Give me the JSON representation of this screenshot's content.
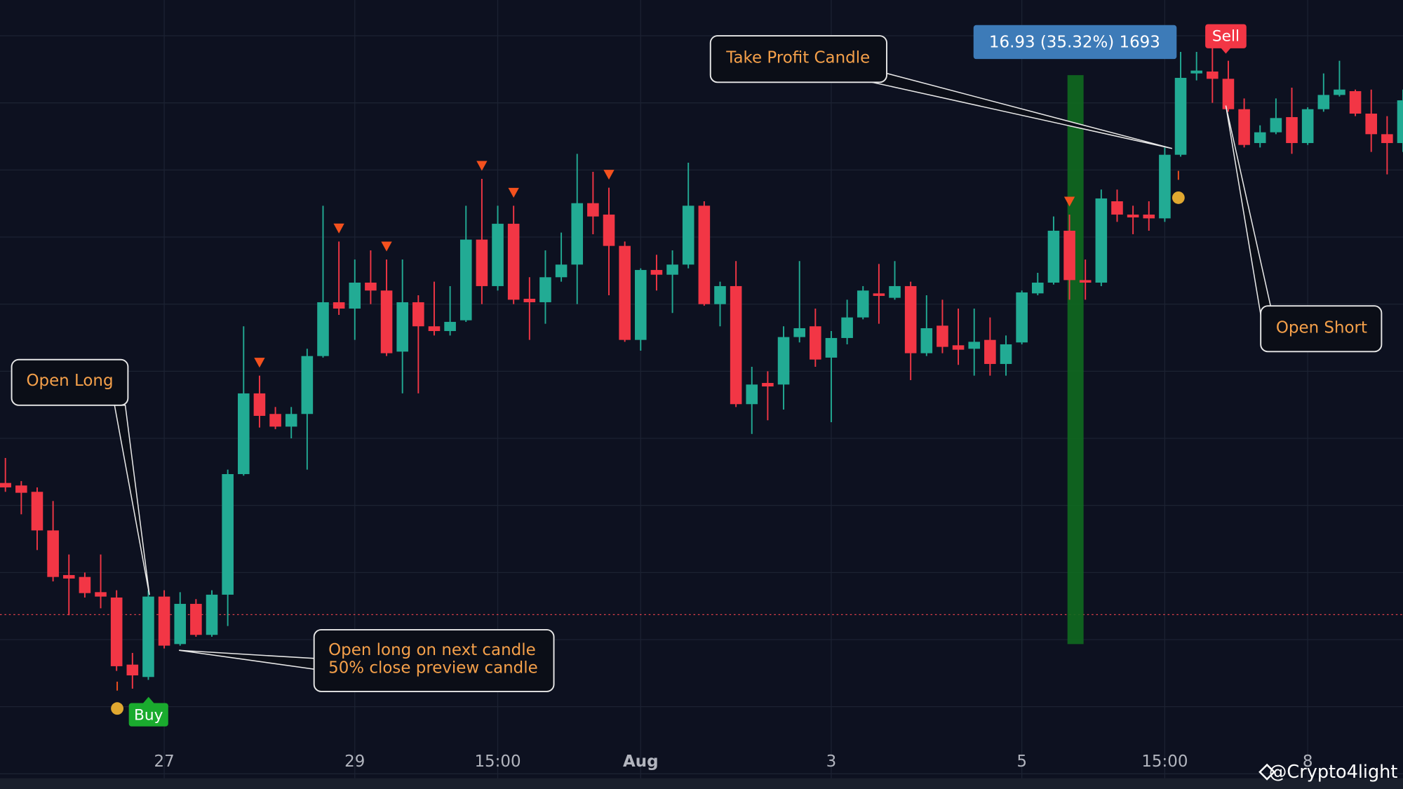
{
  "chart_data": {
    "type": "candlestick",
    "up_color": "#22ab94",
    "down_color": "#f23645",
    "xlim": [
      -0.34,
      88.0
    ],
    "ylim": [
      43.89,
      67.35
    ],
    "xticks": [
      {
        "value": 10,
        "label": "27"
      },
      {
        "value": 22,
        "label": "29"
      },
      {
        "value": 31,
        "label": "15:00"
      },
      {
        "value": 40,
        "label": "Aug"
      },
      {
        "value": 52,
        "label": "3"
      },
      {
        "value": 64,
        "label": "5"
      },
      {
        "value": 73,
        "label": "15:00"
      },
      {
        "value": 82,
        "label": "8"
      }
    ],
    "grid": true,
    "open": [
      52.09,
      52.01,
      51.81,
      50.59,
      49.18,
      49.12,
      48.64,
      48.47,
      46.35,
      45.96,
      48.5,
      47.0,
      48.27,
      47.29,
      48.56,
      52.37,
      54.92,
      54.27,
      53.87,
      54.27,
      56.1,
      57.8,
      57.6,
      58.42,
      58.17,
      56.24,
      57.8,
      57.04,
      56.89,
      57.23,
      59.78,
      58.31,
      60.28,
      57.91,
      57.8,
      58.59,
      58.99,
      60.93,
      60.57,
      59.58,
      56.61,
      58.82,
      58.67,
      58.99,
      60.85,
      57.74,
      58.31,
      54.58,
      55.25,
      55.2,
      56.7,
      57.04,
      56.05,
      56.67,
      57.32,
      58.08,
      57.94,
      58.31,
      56.19,
      57.06,
      56.44,
      56.33,
      56.61,
      55.85,
      56.53,
      58.08,
      58.42,
      60.06,
      58.5,
      58.42,
      60.99,
      60.57,
      60.57,
      60.45,
      62.46,
      65.03,
      65.09,
      64.86,
      63.9,
      62.83,
      63.17,
      63.65,
      62.83,
      63.9,
      64.35,
      64.47,
      63.76,
      63.11,
      62.83
    ],
    "high": [
      52.88,
      52.15,
      51.95,
      51.52,
      49.83,
      49.26,
      49.83,
      48.7,
      46.72,
      48.7,
      48.7,
      48.64,
      48.42,
      48.7,
      52.51,
      57.04,
      55.48,
      54.49,
      54.49,
      56.33,
      60.85,
      59.72,
      59.15,
      59.44,
      59.15,
      59.15,
      58.02,
      58.45,
      58.31,
      60.85,
      61.7,
      60.85,
      60.85,
      58.59,
      59.44,
      60.0,
      62.49,
      61.92,
      61.42,
      59.72,
      58.87,
      59.3,
      59.44,
      62.21,
      60.99,
      58.45,
      59.1,
      55.76,
      55.62,
      57.04,
      59.1,
      57.6,
      56.89,
      57.88,
      58.31,
      59.01,
      59.1,
      58.45,
      58.02,
      57.88,
      57.6,
      57.6,
      57.32,
      56.75,
      58.17,
      58.73,
      60.51,
      60.57,
      59.15,
      61.36,
      61.36,
      60.85,
      60.99,
      62.69,
      65.71,
      65.71,
      65.99,
      65.43,
      64.24,
      63.39,
      64.24,
      64.58,
      63.96,
      65.03,
      65.43,
      64.52,
      64.52,
      63.68,
      64.52
    ],
    "low": [
      51.81,
      51.1,
      49.97,
      48.98,
      47.91,
      48.47,
      48.13,
      46.15,
      45.59,
      45.87,
      46.86,
      46.95,
      47.23,
      47.23,
      47.57,
      52.32,
      53.84,
      53.79,
      53.5,
      52.51,
      56.05,
      57.4,
      56.61,
      57.74,
      56.1,
      54.92,
      54.92,
      56.75,
      56.75,
      57.18,
      57.74,
      58.17,
      57.74,
      56.61,
      57.12,
      58.45,
      57.74,
      59.95,
      58.02,
      56.55,
      56.27,
      58.17,
      57.46,
      58.87,
      57.69,
      57.04,
      54.49,
      53.64,
      54.07,
      54.41,
      56.53,
      55.76,
      54.01,
      56.47,
      57.26,
      57.12,
      57.88,
      55.34,
      56.1,
      56.19,
      55.82,
      55.48,
      55.48,
      55.48,
      56.47,
      58.02,
      58.36,
      57.88,
      57.88,
      58.31,
      60.34,
      59.95,
      60.06,
      60.34,
      62.4,
      64.81,
      64.1,
      63.82,
      62.69,
      62.69,
      63.11,
      62.49,
      62.77,
      63.82,
      64.3,
      63.68,
      62.55,
      61.84,
      62.55
    ],
    "close": [
      51.95,
      51.78,
      50.59,
      49.12,
      49.07,
      48.61,
      48.5,
      46.3,
      46.01,
      48.5,
      46.95,
      48.27,
      47.29,
      48.56,
      52.37,
      54.92,
      54.21,
      53.87,
      54.27,
      56.1,
      57.8,
      57.6,
      58.42,
      58.17,
      56.19,
      57.8,
      57.04,
      56.89,
      57.18,
      59.78,
      58.31,
      60.28,
      57.88,
      57.8,
      58.59,
      58.99,
      60.93,
      60.51,
      59.58,
      56.61,
      58.82,
      58.67,
      58.99,
      60.85,
      57.74,
      58.31,
      54.58,
      55.2,
      55.14,
      56.7,
      56.98,
      55.99,
      56.67,
      57.32,
      58.17,
      58.0,
      58.31,
      56.19,
      56.98,
      56.39,
      56.3,
      56.55,
      55.85,
      56.47,
      58.11,
      58.42,
      60.06,
      58.5,
      58.42,
      61.08,
      60.57,
      60.48,
      60.45,
      62.46,
      64.89,
      65.12,
      64.86,
      63.9,
      62.77,
      63.17,
      63.62,
      62.83,
      63.9,
      64.35,
      64.52,
      63.76,
      63.11,
      62.83,
      64.18
    ],
    "entry_price": 47.93,
    "entry_line_color": "#e0404a",
    "signal_marker_color": "#f4511e",
    "signal_markers": [
      16,
      21,
      24,
      30,
      32,
      38,
      67
    ],
    "buy_label": "Buy",
    "sell_label": "Sell",
    "trade_label": "16.93 (35.32%) 1693",
    "annotations": [
      {
        "lines": [
          "Open Long"
        ]
      },
      {
        "lines": [
          "Take Profit Candle"
        ]
      },
      {
        "lines": [
          "Open Short"
        ]
      },
      {
        "lines": [
          "Open long on next candle",
          "50% close preview candle"
        ]
      }
    ],
    "watermark": "@Crypto4light"
  }
}
